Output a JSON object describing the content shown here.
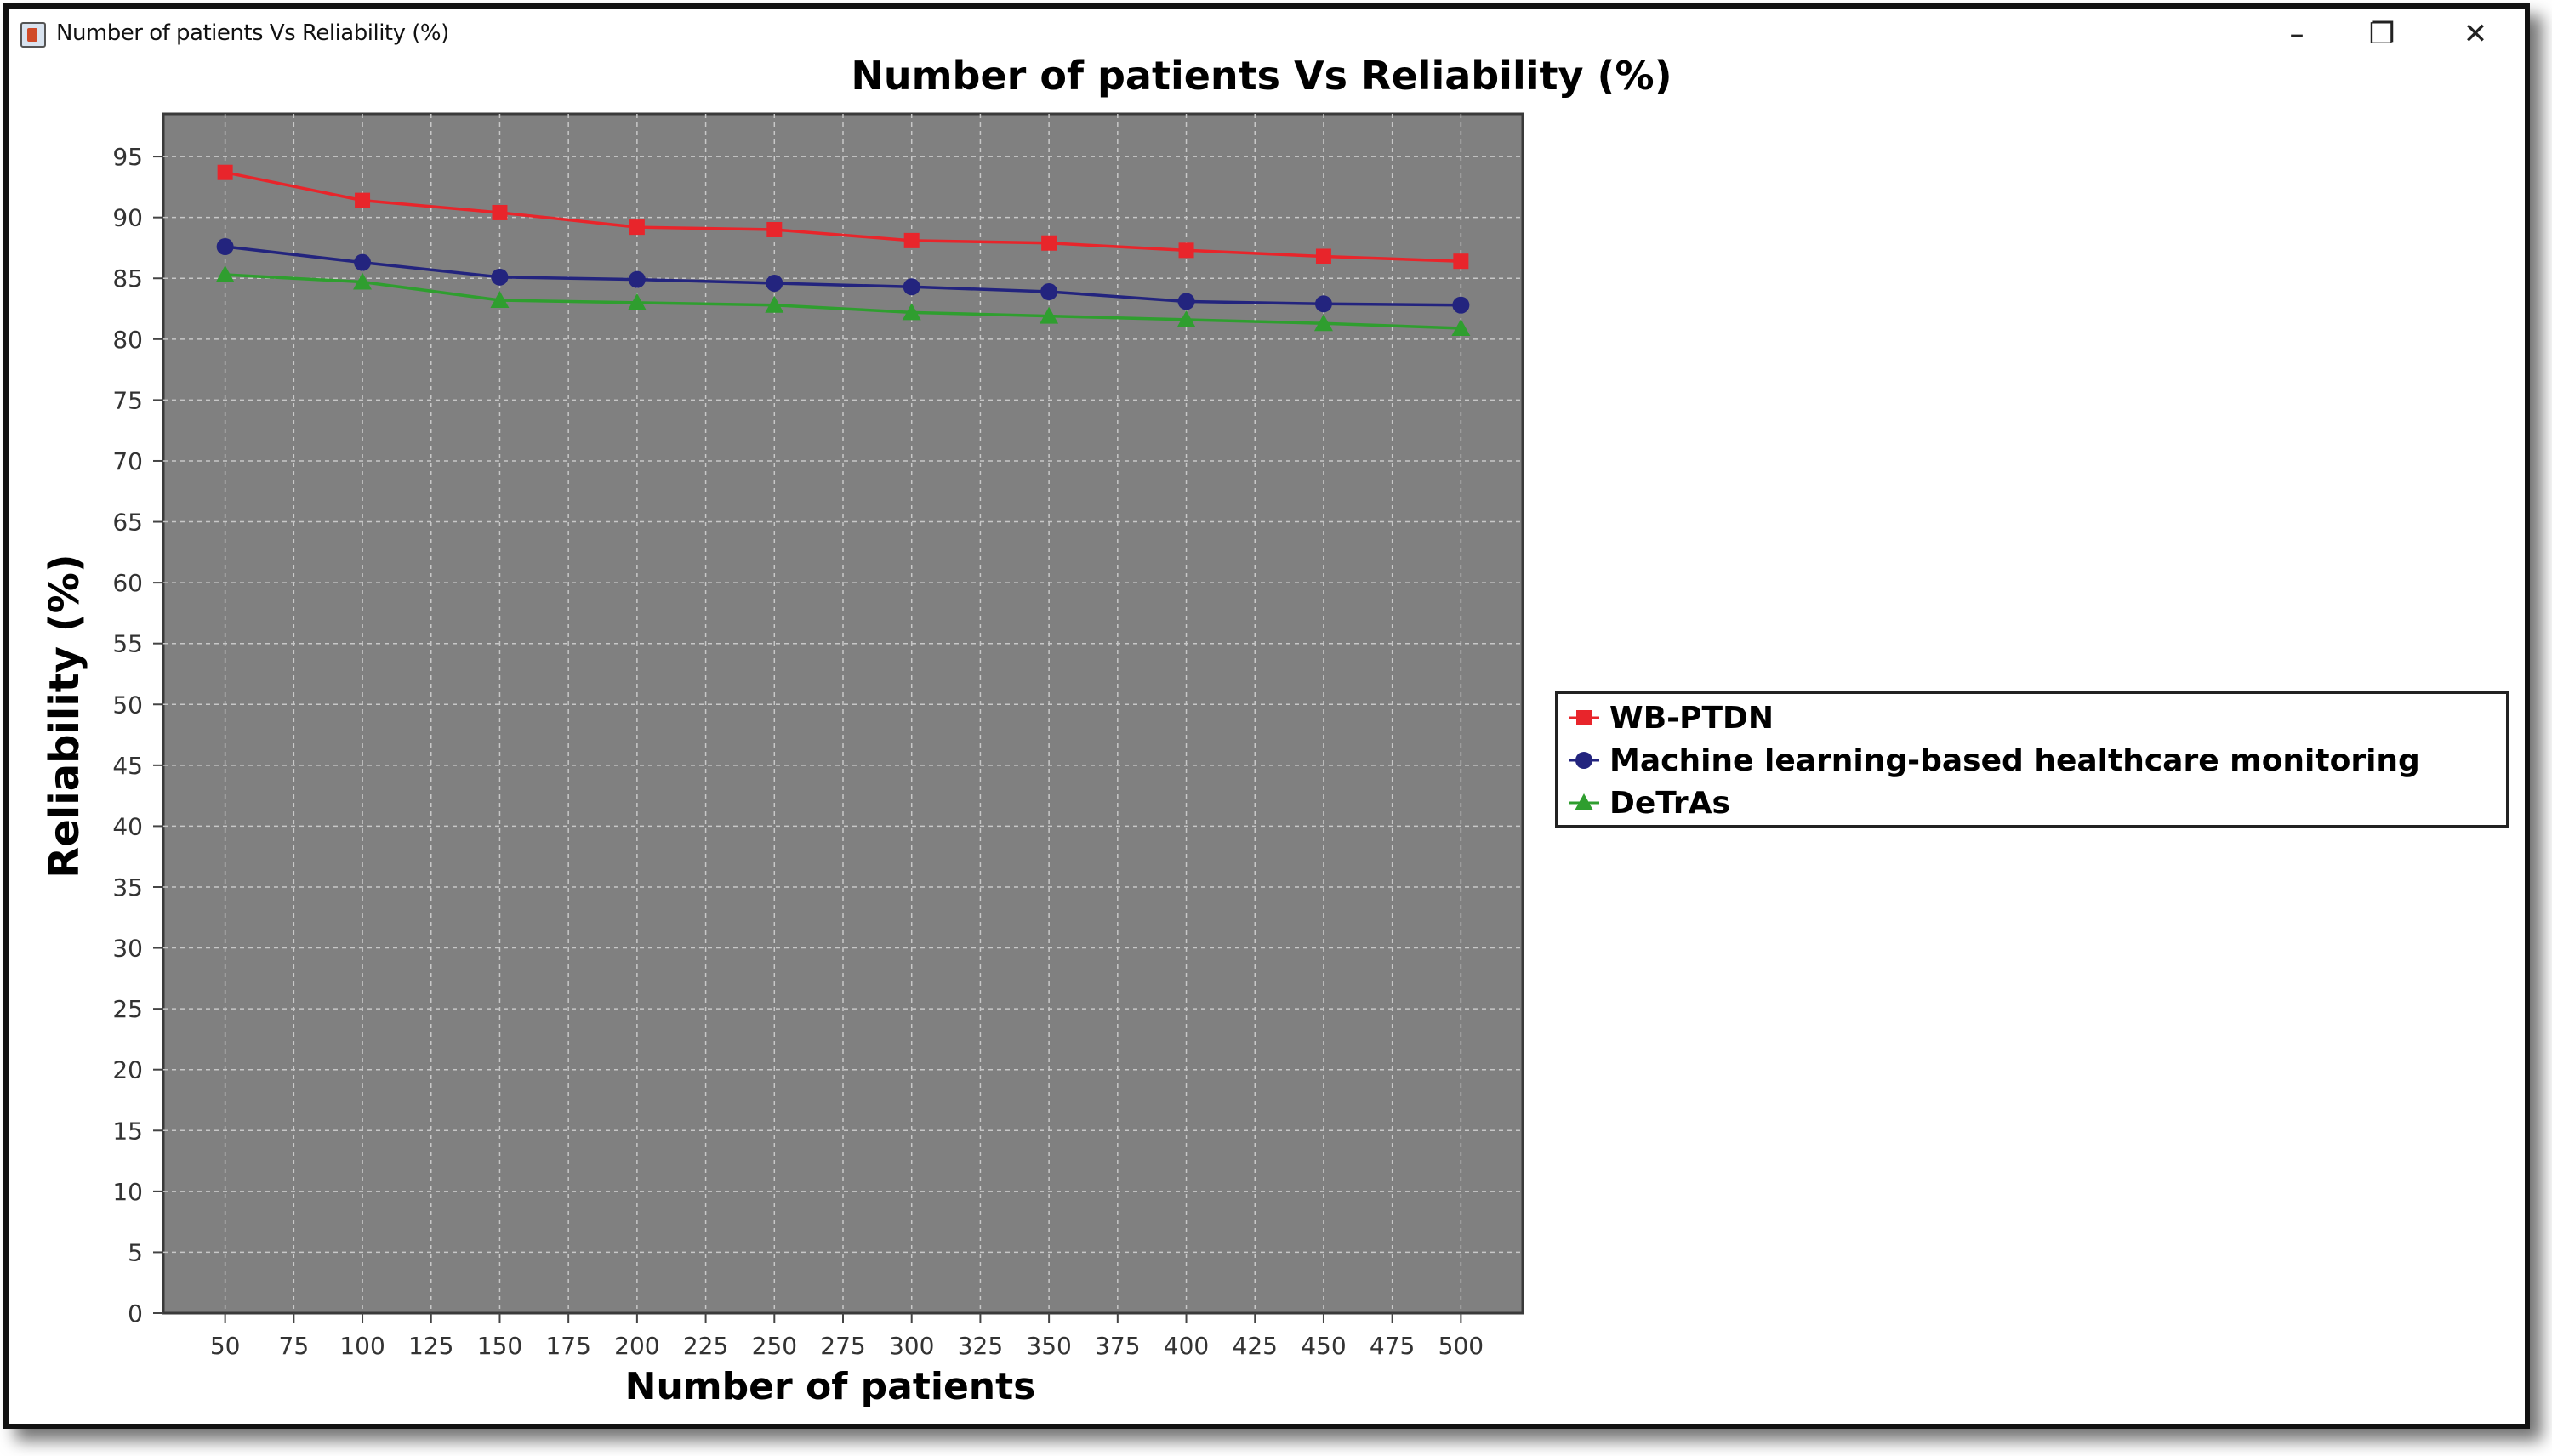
{
  "window": {
    "title": "Number of patients Vs Reliability (%)",
    "minimize_label": "–",
    "maximize_label": "❐",
    "close_label": "✕"
  },
  "chart_data": {
    "type": "line",
    "title": "Number of patients Vs Reliability (%)",
    "xlabel": "Number of patients",
    "ylabel": "Reliability (%)",
    "x": [
      50,
      100,
      150,
      200,
      250,
      300,
      350,
      400,
      450,
      500
    ],
    "xlim": [
      27.5,
      522.5
    ],
    "ylim": [
      0,
      98.5
    ],
    "x_ticks": [
      50,
      75,
      100,
      125,
      150,
      175,
      200,
      225,
      250,
      275,
      300,
      325,
      350,
      375,
      400,
      425,
      450,
      475,
      500
    ],
    "y_ticks": [
      0,
      5,
      10,
      15,
      20,
      25,
      30,
      35,
      40,
      45,
      50,
      55,
      60,
      65,
      70,
      75,
      80,
      85,
      90,
      95
    ],
    "grid": true,
    "legend_position": "right",
    "series": [
      {
        "name": "WB-PTDN",
        "color": "#e8252b",
        "marker": "square",
        "values": [
          93.7,
          91.4,
          90.4,
          89.2,
          89.0,
          88.1,
          87.9,
          87.3,
          86.8,
          86.4
        ]
      },
      {
        "name": "Machine learning-based healthcare monitoring",
        "color": "#23247e",
        "marker": "circle",
        "values": [
          87.6,
          86.3,
          85.1,
          84.9,
          84.6,
          84.3,
          83.9,
          83.1,
          82.9,
          82.8
        ]
      },
      {
        "name": "DeTrAs",
        "color": "#2f9e2f",
        "marker": "triangle",
        "values": [
          85.3,
          84.7,
          83.2,
          83.0,
          82.8,
          82.2,
          81.9,
          81.6,
          81.3,
          80.9
        ]
      }
    ]
  }
}
